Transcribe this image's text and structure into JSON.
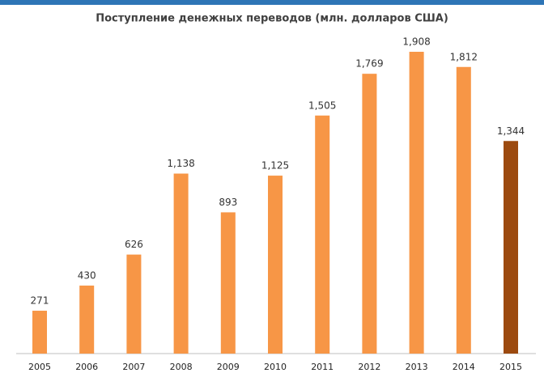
{
  "chart_data": {
    "type": "bar",
    "title": "Поступление денежных переводов (млн. долларов США)",
    "categories": [
      "2005",
      "2006",
      "2007",
      "2008",
      "2009",
      "2010",
      "2011",
      "2012",
      "2013",
      "2014",
      "2015"
    ],
    "values": [
      271,
      430,
      626,
      1138,
      893,
      1125,
      1505,
      1769,
      1908,
      1812,
      1344
    ],
    "value_labels": [
      "271",
      "430",
      "626",
      "1,138",
      "893",
      "1,125",
      "1,505",
      "1,769",
      "1,908",
      "1,812",
      "1,344"
    ],
    "colors": [
      "#f79646",
      "#f79646",
      "#f79646",
      "#f79646",
      "#f79646",
      "#f79646",
      "#f79646",
      "#f79646",
      "#f79646",
      "#f79646",
      "#9c4a0f"
    ],
    "grid": false
  }
}
